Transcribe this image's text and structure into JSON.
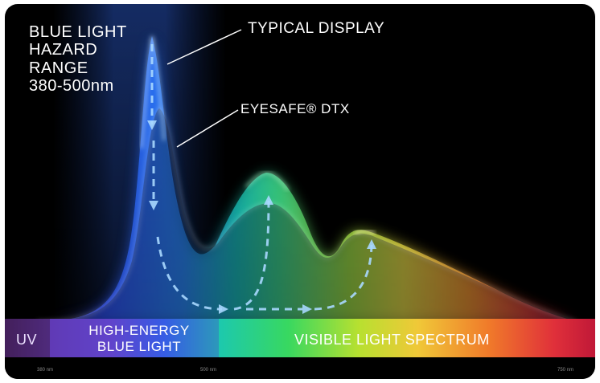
{
  "labels": {
    "hazard_lines": [
      "BLUE LIGHT",
      "HAZARD",
      "RANGE",
      "380-500nm"
    ],
    "typical_display": "TYPICAL DISPLAY",
    "eyesafe": "EYESAFE® DTX"
  },
  "spectrum_band": {
    "uv": "UV",
    "high_energy_lines": [
      "HIGH-ENERGY",
      "BLUE LIGHT"
    ],
    "visible": "VISIBLE LIGHT SPECTRUM"
  },
  "ticks": [
    "380 nm",
    "500 nm",
    "750 nm"
  ],
  "colors": {
    "background": "#000000",
    "blue_peak": "#3a78ff",
    "green_peak": "#3fe08a",
    "yellow_peak": "#f2e23a",
    "red_tail": "#e02030",
    "arrow": "#a8d8ff"
  }
}
